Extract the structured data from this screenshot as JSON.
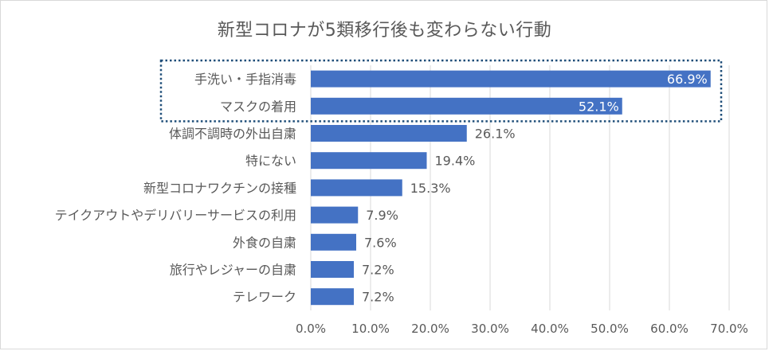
{
  "chart_data": {
    "type": "bar",
    "orientation": "horizontal",
    "title": "新型コロナが5類移行後も変わらない行動",
    "categories": [
      "手洗い・手指消毒",
      "マスクの着用",
      "体調不調時の外出自粛",
      "特にない",
      "新型コロナワクチンの接種",
      "テイクアウトやデリバリーサービスの利用",
      "外食の自粛",
      "旅行やレジャーの自粛",
      "テレワーク"
    ],
    "values": [
      66.9,
      52.1,
      26.1,
      19.4,
      15.3,
      7.9,
      7.6,
      7.2,
      7.2
    ],
    "data_labels": [
      "66.9%",
      "52.1%",
      "26.1%",
      "19.4%",
      "15.3%",
      "7.9%",
      "7.6%",
      "7.2%",
      "7.2%"
    ],
    "xlim": [
      0,
      70
    ],
    "x_ticks": [
      "0.0%",
      "10.0%",
      "20.0%",
      "30.0%",
      "40.0%",
      "50.0%",
      "60.0%",
      "70.0%"
    ],
    "grid": true,
    "highlighted_categories": [
      "手洗い・手指消毒",
      "マスクの着用"
    ],
    "colors": {
      "bar": "#4472c4",
      "grid": "#d9d9d9",
      "text": "#595959",
      "highlight_box": "#1f4e79",
      "inside_label": "#ffffff"
    }
  }
}
